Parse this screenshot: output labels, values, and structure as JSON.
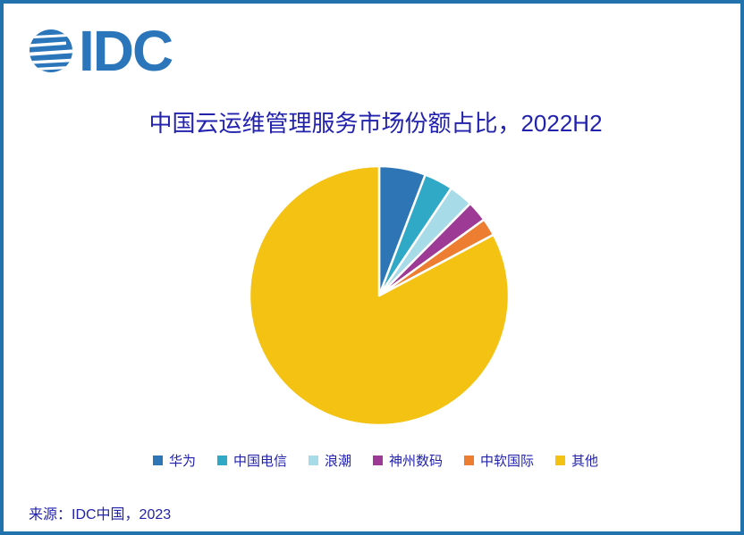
{
  "frame": {
    "border_color": "#2272AE",
    "background": "#FFFFFF"
  },
  "logo": {
    "text": "IDC",
    "color": "#2B76BB"
  },
  "title": {
    "text": "中国云运维管理服务市场份额占比，2022H2",
    "color": "#2222AE"
  },
  "chart_data": {
    "type": "pie",
    "title": "中国云运维管理服务市场份额占比，2022H2",
    "start_angle_deg": 0,
    "direction": "clockwise",
    "legend_position": "bottom",
    "slice_border_color": "#FFFFFF",
    "series": [
      {
        "name": "华为",
        "value": 5.8,
        "color": "#2E75B6"
      },
      {
        "name": "中国电信",
        "value": 3.6,
        "color": "#2FA9C6"
      },
      {
        "name": "浪潮",
        "value": 3.0,
        "color": "#A8DBE8"
      },
      {
        "name": "神州数码",
        "value": 2.6,
        "color": "#9C3A96"
      },
      {
        "name": "中软国际",
        "value": 2.2,
        "color": "#ED7D31"
      },
      {
        "name": "其他",
        "value": 82.8,
        "color": "#F3C212"
      }
    ]
  },
  "source": {
    "text": "来源：IDC中国，2023"
  }
}
